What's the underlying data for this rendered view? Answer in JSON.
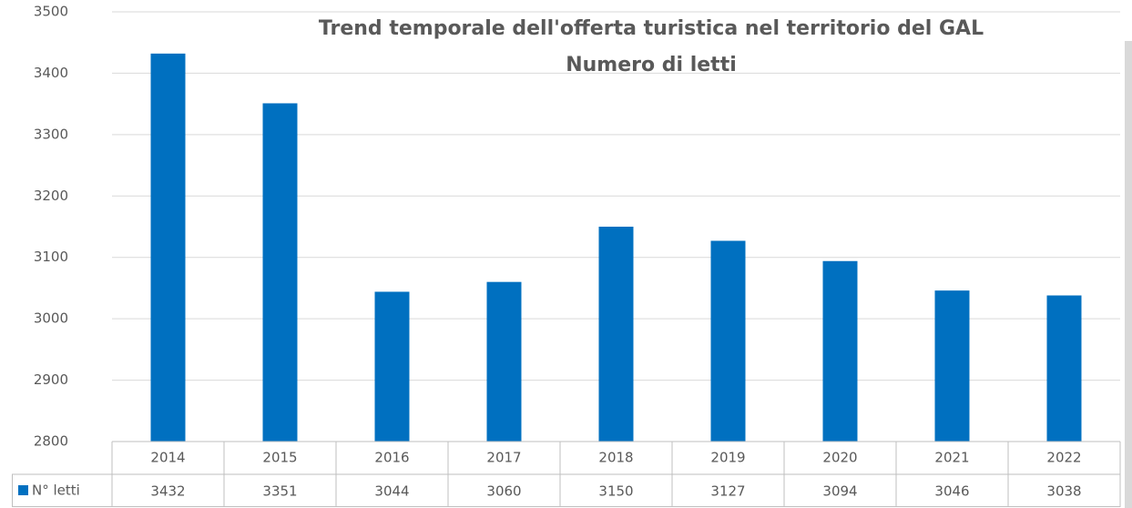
{
  "chart_data": {
    "type": "bar",
    "title": "Trend temporale dell'offerta turistica nel territorio del GAL",
    "subtitle": "Numero di letti",
    "categories": [
      "2014",
      "2015",
      "2016",
      "2017",
      "2018",
      "2019",
      "2020",
      "2021",
      "2022"
    ],
    "series": [
      {
        "name": "N° letti",
        "color": "#0070c0",
        "values": [
          3432,
          3351,
          3044,
          3060,
          3150,
          3127,
          3094,
          3046,
          3038
        ]
      }
    ],
    "ylim": [
      2800,
      3500
    ],
    "yticks": [
      2800,
      2900,
      3000,
      3100,
      3200,
      3300,
      3400,
      3500
    ],
    "grid": true,
    "data_table": true
  }
}
